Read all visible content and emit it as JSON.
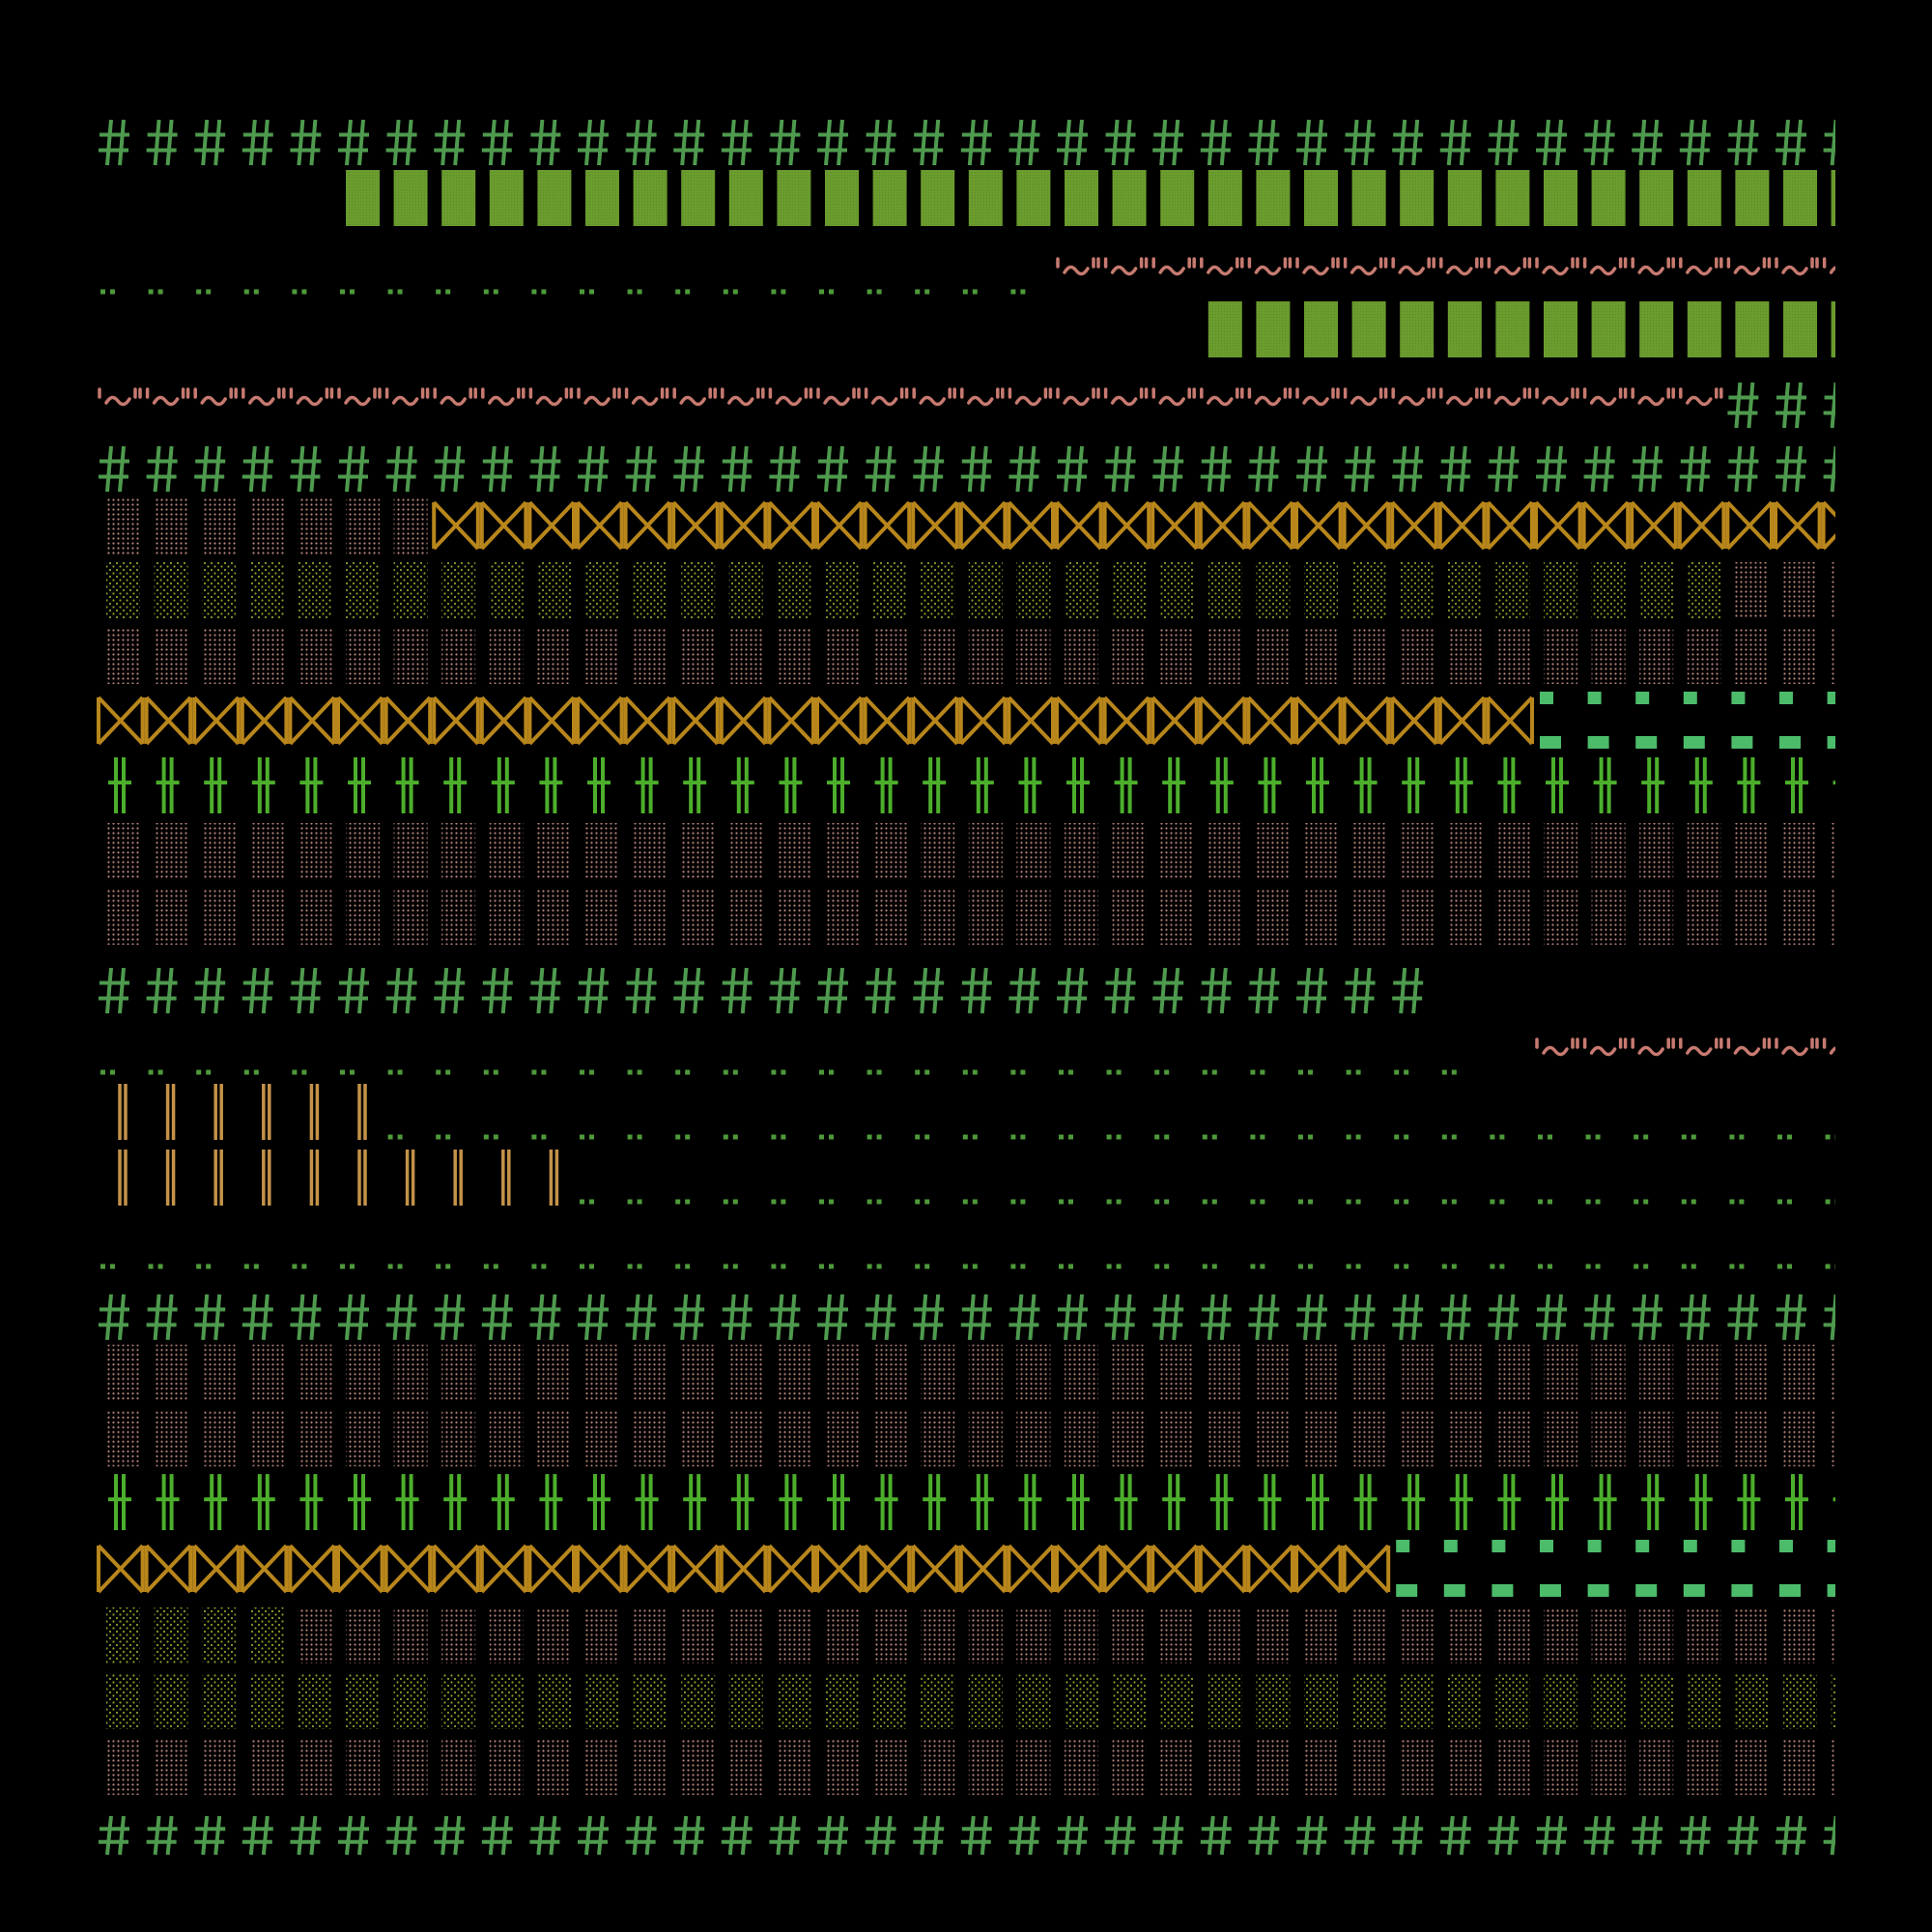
{
  "canvas": {
    "background": "#000000"
  },
  "colors": {
    "hash_green": "#4e9a4e",
    "block_green": "#6b9c2e",
    "dot_green": "#4e9a3a",
    "wave_pink": "#c77a70",
    "pink_dots": "#b7847b",
    "olive_dots": "#8e9a2a",
    "hourglass_gold": "#b8861b",
    "cross_green": "#4caf2c",
    "dash_green": "#4cbb6a",
    "bar_gold": "#c49248"
  },
  "pattern_names": [
    "hash-glyph",
    "green-block-glyph",
    "double-dot-glyph",
    "wave-glyph",
    "pink-dot-block-glyph",
    "olive-dot-block-glyph",
    "hourglass-glyph",
    "cross-glyph",
    "dash-glyph",
    "double-bar-glyph"
  ]
}
